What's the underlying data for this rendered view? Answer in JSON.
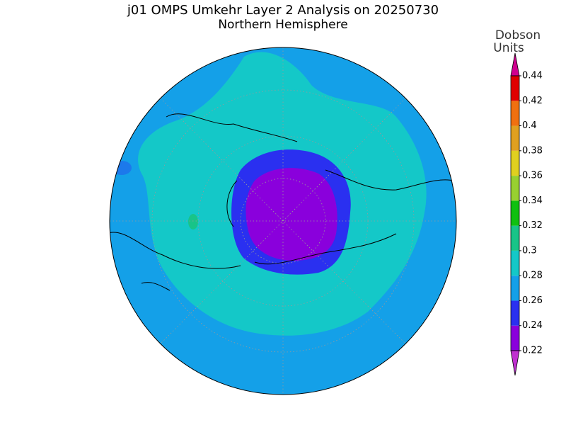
{
  "header": {
    "title": "j01 OMPS Umkehr Layer 2 Analysis on 20250730",
    "subtitle": "Northern Hemisphere"
  },
  "colorbar": {
    "label": [
      "Dobson",
      "Units"
    ],
    "ticks": [
      0.22,
      0.24,
      0.26,
      0.28,
      0.3,
      0.32,
      0.34,
      0.36,
      0.38,
      0.4,
      0.42,
      0.44
    ],
    "colors": [
      "#8a00dc",
      "#2a30f0",
      "#14a0e8",
      "#14c8c8",
      "#18c488",
      "#10c010",
      "#98d030",
      "#e0d020",
      "#e0a020",
      "#f07010",
      "#e00000"
    ],
    "under_color": "#c030d0",
    "over_color": "#d00090"
  }
}
